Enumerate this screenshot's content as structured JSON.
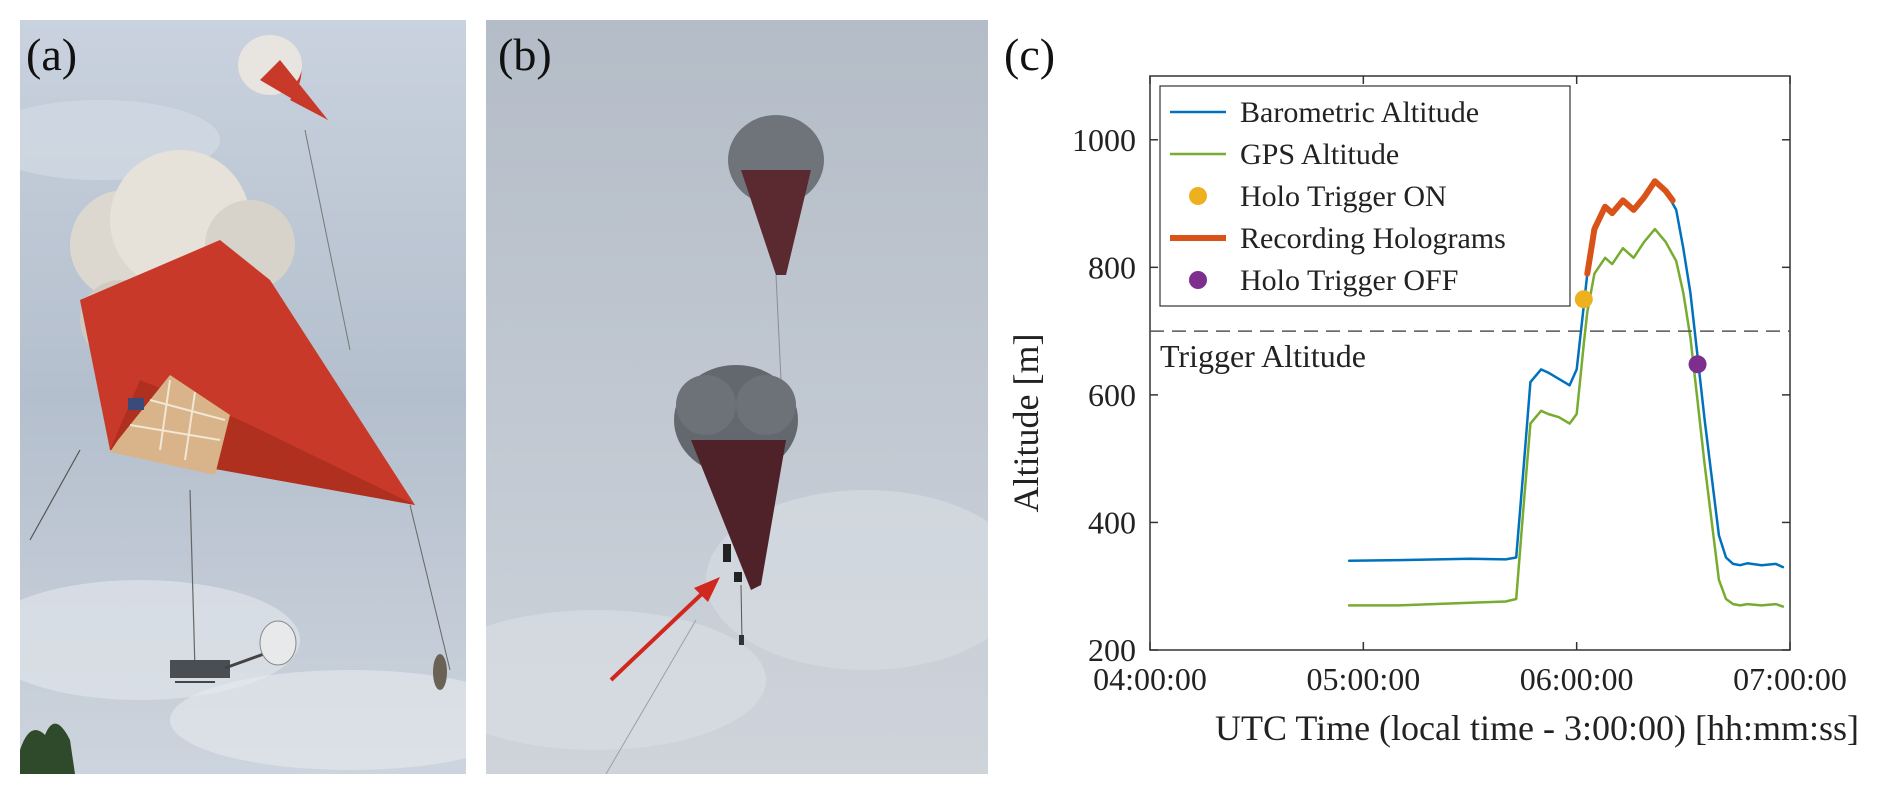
{
  "panels": {
    "a": {
      "label": "(a)"
    },
    "b": {
      "label": "(b)"
    },
    "c": {
      "label": "(c)"
    }
  },
  "colors": {
    "barometric": "#0072BD",
    "gps": "#77AC30",
    "trigger_on": "#EDB120",
    "recording": "#D95319",
    "trigger_off": "#7E2F8E",
    "balloon_red": "#c8392a",
    "sky": "#aeb8c6",
    "arrow": "#d0281e"
  },
  "chart_data": {
    "type": "line",
    "xlabel": "UTC Time (local time - 3:00:00) [hh:mm:ss]",
    "ylabel": "Altitude [m]",
    "xlim": [
      "04:00:00",
      "07:00:00"
    ],
    "ylim": [
      200,
      1100
    ],
    "x_ticks": [
      "04:00:00",
      "05:00:00",
      "06:00:00",
      "07:00:00"
    ],
    "y_ticks": [
      200,
      400,
      600,
      800,
      1000
    ],
    "legend_position": "top-left",
    "grid": false,
    "reference_line": {
      "y": 700,
      "label": "Trigger Altitude",
      "style": "dashed"
    },
    "series": [
      {
        "name": "Barometric Altitude",
        "style": "line",
        "color": "#0072BD",
        "x": [
          "04:56:00",
          "05:10:00",
          "05:30:00",
          "05:40:00",
          "05:43:00",
          "05:45:00",
          "05:47:00",
          "05:50:00",
          "05:52:00",
          "05:55:00",
          "05:58:00",
          "06:00:00",
          "06:02:00",
          "06:03:00",
          "06:05:00",
          "06:08:00",
          "06:10:00",
          "06:13:00",
          "06:16:00",
          "06:19:00",
          "06:22:00",
          "06:25:00",
          "06:28:00",
          "06:30:00",
          "06:32:00",
          "06:34:00",
          "06:36:00",
          "06:38:00",
          "06:40:00",
          "06:42:00",
          "06:44:00",
          "06:46:00",
          "06:48:00",
          "06:52:00",
          "06:56:00",
          "06:58:00"
        ],
        "y": [
          340,
          341,
          343,
          342,
          345,
          480,
          620,
          640,
          635,
          625,
          615,
          640,
          740,
          790,
          860,
          895,
          885,
          905,
          890,
          910,
          935,
          920,
          890,
          830,
          760,
          660,
          560,
          470,
          380,
          345,
          335,
          333,
          336,
          333,
          335,
          330
        ]
      },
      {
        "name": "GPS Altitude",
        "style": "line",
        "color": "#77AC30",
        "x": [
          "04:56:00",
          "05:10:00",
          "05:30:00",
          "05:40:00",
          "05:43:00",
          "05:45:00",
          "05:47:00",
          "05:50:00",
          "05:52:00",
          "05:55:00",
          "05:58:00",
          "06:00:00",
          "06:02:00",
          "06:03:00",
          "06:05:00",
          "06:08:00",
          "06:10:00",
          "06:13:00",
          "06:16:00",
          "06:19:00",
          "06:22:00",
          "06:25:00",
          "06:28:00",
          "06:30:00",
          "06:32:00",
          "06:34:00",
          "06:36:00",
          "06:38:00",
          "06:40:00",
          "06:42:00",
          "06:44:00",
          "06:46:00",
          "06:48:00",
          "06:52:00",
          "06:56:00",
          "06:58:00"
        ],
        "y": [
          270,
          270,
          274,
          276,
          280,
          420,
          555,
          575,
          570,
          565,
          555,
          570,
          680,
          730,
          790,
          815,
          805,
          830,
          815,
          840,
          860,
          840,
          810,
          760,
          690,
          590,
          490,
          400,
          310,
          280,
          272,
          270,
          272,
          270,
          272,
          268
        ]
      },
      {
        "name": "Holo Trigger ON",
        "style": "marker",
        "color": "#EDB120",
        "x": [
          "06:02:00"
        ],
        "y": [
          750
        ]
      },
      {
        "name": "Recording Holograms",
        "style": "thick-line",
        "color": "#D95319",
        "x": [
          "06:03:00",
          "06:05:00",
          "06:08:00",
          "06:10:00",
          "06:13:00",
          "06:16:00",
          "06:19:00",
          "06:22:00",
          "06:25:00",
          "06:27:00"
        ],
        "y": [
          790,
          860,
          895,
          885,
          905,
          890,
          910,
          935,
          920,
          905
        ]
      },
      {
        "name": "Holo Trigger OFF",
        "style": "marker",
        "color": "#7E2F8E",
        "x": [
          "06:34:00"
        ],
        "y": [
          648
        ]
      }
    ]
  }
}
